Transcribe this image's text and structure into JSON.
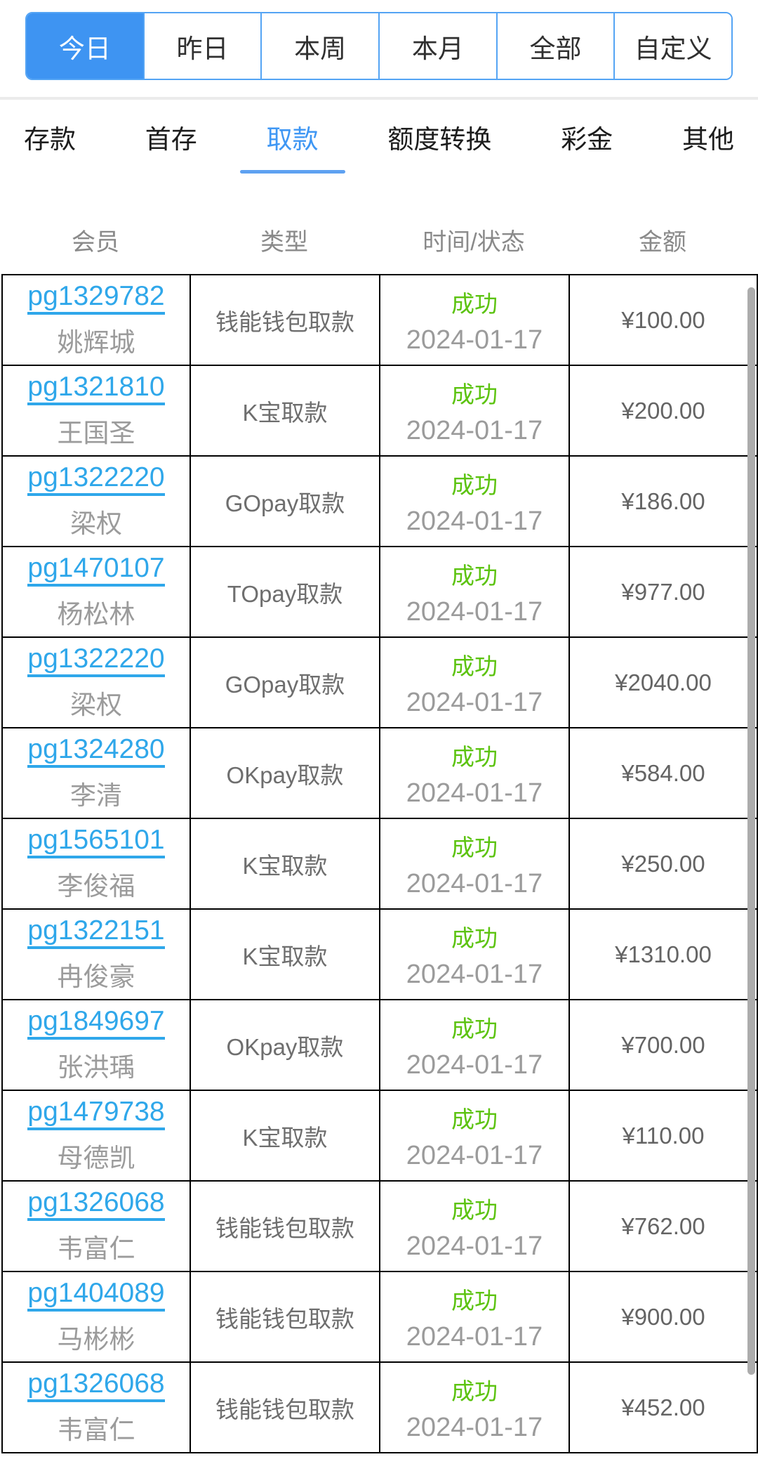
{
  "date_tabs": {
    "items": [
      {
        "label": "今日",
        "active": true
      },
      {
        "label": "昨日",
        "active": false
      },
      {
        "label": "本周",
        "active": false
      },
      {
        "label": "本月",
        "active": false
      },
      {
        "label": "全部",
        "active": false
      },
      {
        "label": "自定义",
        "active": false
      }
    ]
  },
  "type_tabs": {
    "items": [
      {
        "label": "存款",
        "active": false
      },
      {
        "label": "首存",
        "active": false
      },
      {
        "label": "取款",
        "active": true
      },
      {
        "label": "额度转换",
        "active": false
      },
      {
        "label": "彩金",
        "active": false
      },
      {
        "label": "其他",
        "active": false
      }
    ]
  },
  "table": {
    "headers": [
      "会员",
      "类型",
      "时间/状态",
      "金额"
    ],
    "rows": [
      {
        "member_id": "pg1329782",
        "member_name": "姚辉城",
        "type": "钱能钱包取款",
        "status": "成功",
        "date": "2024-01-17",
        "amount": "¥100.00"
      },
      {
        "member_id": "pg1321810",
        "member_name": "王国圣",
        "type": "K宝取款",
        "status": "成功",
        "date": "2024-01-17",
        "amount": "¥200.00"
      },
      {
        "member_id": "pg1322220",
        "member_name": "梁权",
        "type": "GOpay取款",
        "status": "成功",
        "date": "2024-01-17",
        "amount": "¥186.00"
      },
      {
        "member_id": "pg1470107",
        "member_name": "杨松林",
        "type": "TOpay取款",
        "status": "成功",
        "date": "2024-01-17",
        "amount": "¥977.00"
      },
      {
        "member_id": "pg1322220",
        "member_name": "梁权",
        "type": "GOpay取款",
        "status": "成功",
        "date": "2024-01-17",
        "amount": "¥2040.00"
      },
      {
        "member_id": "pg1324280",
        "member_name": "李清",
        "type": "OKpay取款",
        "status": "成功",
        "date": "2024-01-17",
        "amount": "¥584.00"
      },
      {
        "member_id": "pg1565101",
        "member_name": "李俊福",
        "type": "K宝取款",
        "status": "成功",
        "date": "2024-01-17",
        "amount": "¥250.00"
      },
      {
        "member_id": "pg1322151",
        "member_name": "冉俊豪",
        "type": "K宝取款",
        "status": "成功",
        "date": "2024-01-17",
        "amount": "¥1310.00"
      },
      {
        "member_id": "pg1849697",
        "member_name": "张洪瑀",
        "type": "OKpay取款",
        "status": "成功",
        "date": "2024-01-17",
        "amount": "¥700.00"
      },
      {
        "member_id": "pg1479738",
        "member_name": "母德凯",
        "type": "K宝取款",
        "status": "成功",
        "date": "2024-01-17",
        "amount": "¥110.00"
      },
      {
        "member_id": "pg1326068",
        "member_name": "韦富仁",
        "type": "钱能钱包取款",
        "status": "成功",
        "date": "2024-01-17",
        "amount": "¥762.00"
      },
      {
        "member_id": "pg1404089",
        "member_name": "马彬彬",
        "type": "钱能钱包取款",
        "status": "成功",
        "date": "2024-01-17",
        "amount": "¥900.00"
      },
      {
        "member_id": "pg1326068",
        "member_name": "韦富仁",
        "type": "钱能钱包取款",
        "status": "成功",
        "date": "2024-01-17",
        "amount": "¥452.00"
      }
    ]
  },
  "colors": {
    "primary_blue": "#3e94f2",
    "link_blue": "#2fa7ea",
    "success_green": "#5cc310",
    "table_border": "#000000"
  }
}
